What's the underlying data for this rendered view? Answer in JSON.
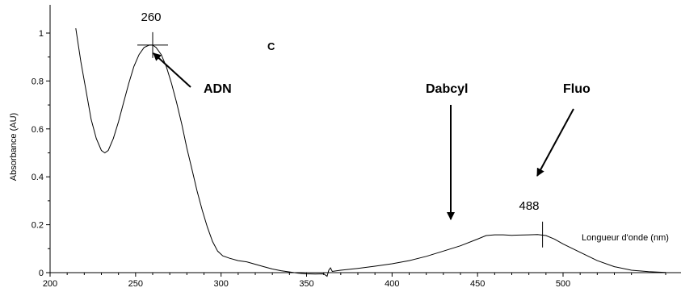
{
  "chart_data": {
    "type": "line",
    "title": "",
    "panel_label": "C",
    "xlabel": "Longueur d'onde (nm)",
    "ylabel": "Absorbance (AU)",
    "xlim": [
      200,
      560
    ],
    "ylim": [
      0,
      1.05
    ],
    "x_ticks": [
      200,
      250,
      300,
      350,
      400,
      450,
      500
    ],
    "x_tick_labels": [
      "200",
      "250",
      "300",
      "350",
      "400",
      "450",
      "500"
    ],
    "y_ticks": [
      0,
      0.2,
      0.4,
      0.6,
      0.8,
      1
    ],
    "y_tick_labels": [
      "0",
      "0.2",
      "0.4",
      "0.6",
      "0.8",
      "1"
    ],
    "grid": false,
    "series": [
      {
        "x": [
          215,
          218,
          221,
          224,
          227,
          230,
          232,
          234,
          237,
          240,
          243,
          246,
          249,
          252,
          255,
          258,
          260,
          262,
          265,
          268,
          271,
          274,
          277,
          280,
          283,
          286,
          289,
          292,
          295,
          298,
          301,
          305,
          310,
          315,
          320,
          325,
          330,
          335,
          340,
          345,
          350,
          355,
          360,
          362,
          363,
          364,
          365,
          370,
          380,
          390,
          400,
          410,
          420,
          430,
          440,
          450,
          455,
          460,
          465,
          470,
          475,
          480,
          485,
          490,
          495,
          500,
          510,
          520,
          530,
          540,
          550,
          560
        ],
        "y": [
          1.02,
          0.88,
          0.76,
          0.64,
          0.56,
          0.51,
          0.5,
          0.51,
          0.56,
          0.63,
          0.71,
          0.79,
          0.86,
          0.91,
          0.94,
          0.95,
          0.95,
          0.94,
          0.91,
          0.86,
          0.79,
          0.71,
          0.62,
          0.52,
          0.43,
          0.34,
          0.26,
          0.19,
          0.13,
          0.09,
          0.07,
          0.06,
          0.05,
          0.045,
          0.035,
          0.025,
          0.015,
          0.008,
          0.003,
          -0.002,
          -0.005,
          -0.006,
          -0.005,
          -0.015,
          0.01,
          0.02,
          0.005,
          0.01,
          0.018,
          0.027,
          0.037,
          0.05,
          0.068,
          0.09,
          0.112,
          0.14,
          0.155,
          0.158,
          0.158,
          0.156,
          0.157,
          0.158,
          0.159,
          0.155,
          0.14,
          0.12,
          0.085,
          0.05,
          0.025,
          0.01,
          0.004,
          0.001
        ]
      }
    ],
    "annotations": [
      {
        "text": "260",
        "kind": "peak",
        "x": 260,
        "y": 0.95
      },
      {
        "text": "488",
        "kind": "peak",
        "x": 488,
        "y": 0.159
      },
      {
        "text": "ADN",
        "kind": "arrow-label"
      },
      {
        "text": "Dabcyl",
        "kind": "arrow-label"
      },
      {
        "text": "Fluo",
        "kind": "arrow-label"
      }
    ]
  }
}
